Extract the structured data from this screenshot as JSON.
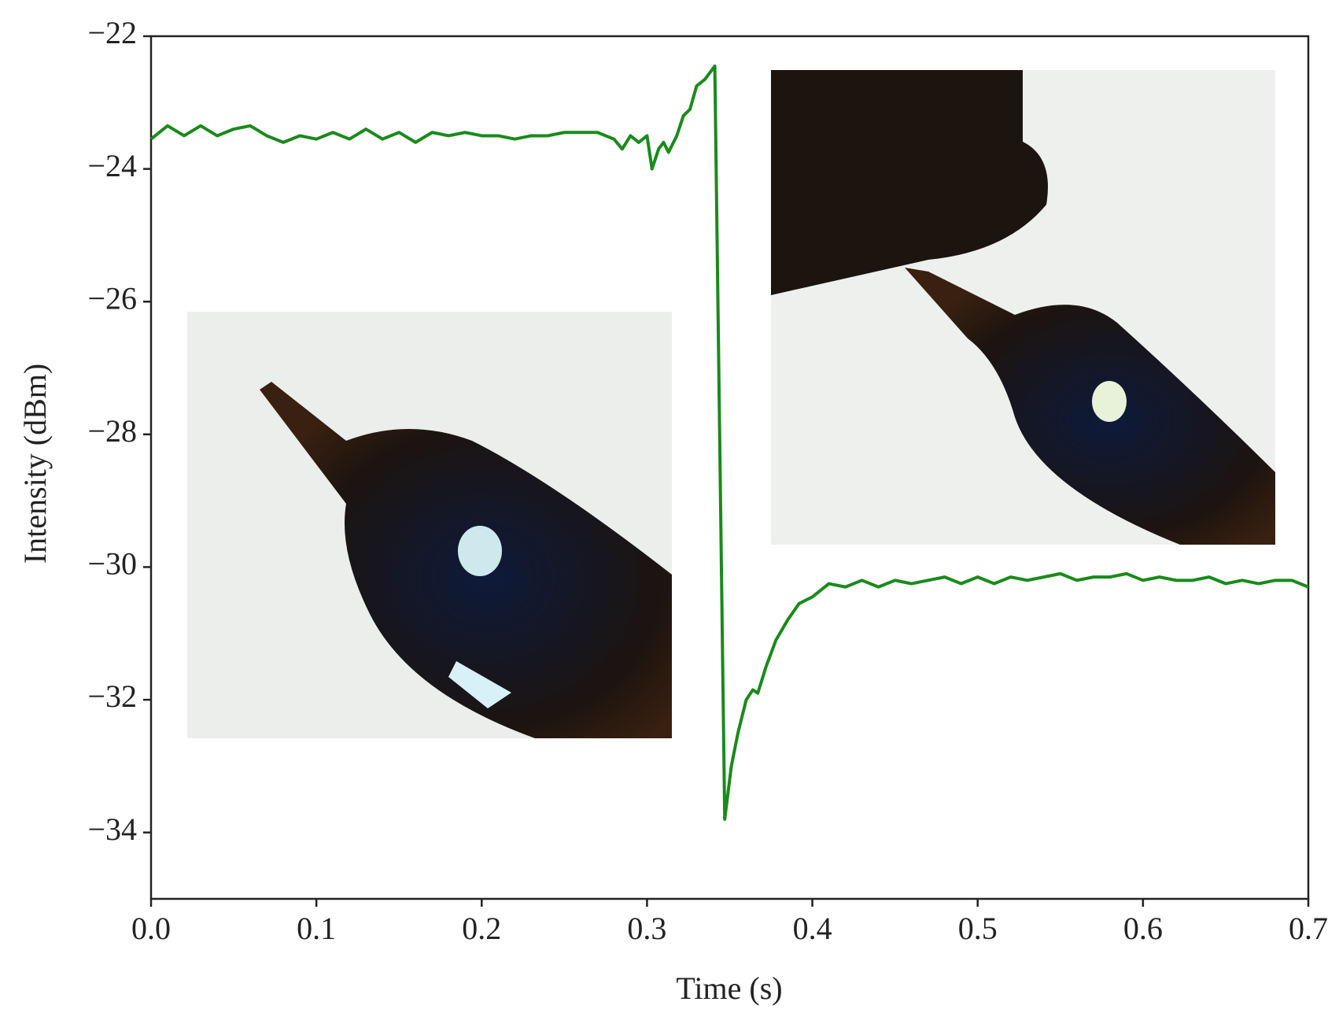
{
  "chart_data": {
    "type": "line",
    "xlabel": "Time (s)",
    "ylabel": "Intensity (dBm)",
    "xlim": [
      0,
      0.7
    ],
    "ylim": [
      -35,
      -22
    ],
    "xticks": [
      {
        "value": 0,
        "label": "0.0"
      },
      0.1,
      0.2,
      0.3,
      0.4,
      0.5,
      0.6,
      0.7
    ],
    "yticks": [
      {
        "value": -22,
        "label": "−22"
      },
      {
        "value": -24,
        "label": "−24"
      },
      {
        "value": -26,
        "label": "−26"
      },
      {
        "value": -28,
        "label": "−28"
      },
      {
        "value": -30,
        "label": "−30"
      },
      {
        "value": -32,
        "label": "−32"
      },
      {
        "value": -34,
        "label": "−34"
      }
    ],
    "series": [
      {
        "color": "#1a8a1a",
        "x": [
          0,
          0.01,
          0.02,
          0.03,
          0.04,
          0.05,
          0.06,
          0.07,
          0.08,
          0.09,
          0.1,
          0.11,
          0.12,
          0.13,
          0.14,
          0.15,
          0.16,
          0.17,
          0.18,
          0.19,
          0.2,
          0.21,
          0.22,
          0.23,
          0.24,
          0.25,
          0.26,
          0.27,
          0.28,
          0.285,
          0.29,
          0.295,
          0.3,
          0.303,
          0.307,
          0.31,
          0.313,
          0.318,
          0.322,
          0.326,
          0.33,
          0.335,
          0.341,
          0.347,
          0.351,
          0.355,
          0.36,
          0.364,
          0.367,
          0.372,
          0.378,
          0.385,
          0.392,
          0.4,
          0.41,
          0.42,
          0.43,
          0.44,
          0.45,
          0.46,
          0.47,
          0.48,
          0.49,
          0.5,
          0.51,
          0.52,
          0.53,
          0.54,
          0.55,
          0.56,
          0.57,
          0.58,
          0.59,
          0.6,
          0.61,
          0.62,
          0.63,
          0.64,
          0.65,
          0.66,
          0.67,
          0.68,
          0.69,
          0.7
        ],
        "values": [
          -23.55,
          -23.35,
          -23.5,
          -23.35,
          -23.5,
          -23.4,
          -23.35,
          -23.5,
          -23.6,
          -23.5,
          -23.55,
          -23.45,
          -23.55,
          -23.4,
          -23.55,
          -23.45,
          -23.6,
          -23.45,
          -23.5,
          -23.45,
          -23.5,
          -23.5,
          -23.55,
          -23.5,
          -23.5,
          -23.45,
          -23.45,
          -23.45,
          -23.55,
          -23.7,
          -23.5,
          -23.6,
          -23.5,
          -24.0,
          -23.7,
          -23.6,
          -23.75,
          -23.5,
          -23.2,
          -23.1,
          -22.75,
          -22.65,
          -22.45,
          -33.8,
          -33.0,
          -32.5,
          -32.0,
          -31.85,
          -31.9,
          -31.5,
          -31.1,
          -30.8,
          -30.55,
          -30.45,
          -30.25,
          -30.3,
          -30.2,
          -30.3,
          -30.2,
          -30.25,
          -30.2,
          -30.15,
          -30.25,
          -30.15,
          -30.25,
          -30.15,
          -30.2,
          -30.15,
          -30.1,
          -30.2,
          -30.15,
          -30.15,
          -30.1,
          -30.2,
          -30.15,
          -30.2,
          -30.2,
          -30.15,
          -30.25,
          -30.2,
          -30.25,
          -30.2,
          -30.2,
          -30.3
        ]
      }
    ]
  }
}
